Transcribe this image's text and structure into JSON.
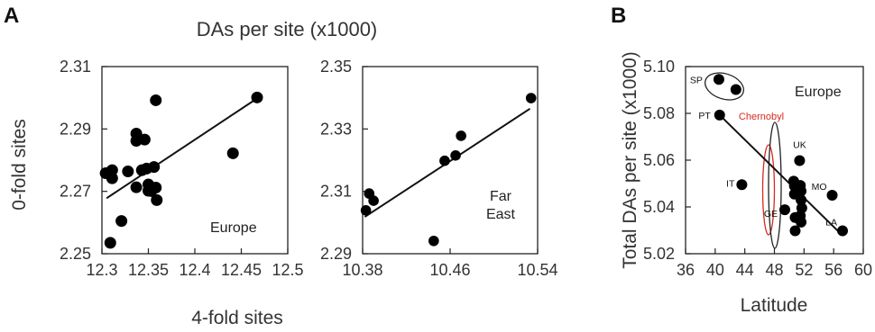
{
  "figure": {
    "title": "DAs per site (x1000)",
    "left_xlabel": "4-fold sites",
    "left_ylabel": "0-fold sites"
  },
  "chart_data": [
    {
      "type": "scatter",
      "panel_letter": "A",
      "annotation": "Europe",
      "xlim": [
        12.3,
        12.5
      ],
      "ylim": [
        2.25,
        2.31
      ],
      "xticks": [
        "12.3",
        "12.35",
        "12.4",
        "12.45",
        "12.5"
      ],
      "xtick_values": [
        12.3,
        12.35,
        12.4,
        12.45,
        12.5
      ],
      "yticks": [
        "2.25",
        "2.27",
        "2.29",
        "2.31"
      ],
      "ytick_values": [
        2.25,
        2.27,
        2.29,
        2.31
      ],
      "points": [
        {
          "x": 12.304,
          "y": 2.2758
        },
        {
          "x": 12.309,
          "y": 2.2762
        },
        {
          "x": 12.311,
          "y": 2.2768
        },
        {
          "x": 12.311,
          "y": 2.2742
        },
        {
          "x": 12.309,
          "y": 2.2535
        },
        {
          "x": 12.321,
          "y": 2.2605
        },
        {
          "x": 12.328,
          "y": 2.2764
        },
        {
          "x": 12.337,
          "y": 2.2885
        },
        {
          "x": 12.337,
          "y": 2.2862
        },
        {
          "x": 12.337,
          "y": 2.2713
        },
        {
          "x": 12.343,
          "y": 2.2768
        },
        {
          "x": 12.346,
          "y": 2.2866
        },
        {
          "x": 12.348,
          "y": 2.2773
        },
        {
          "x": 12.35,
          "y": 2.2702
        },
        {
          "x": 12.35,
          "y": 2.2722
        },
        {
          "x": 12.353,
          "y": 2.2701
        },
        {
          "x": 12.356,
          "y": 2.2778
        },
        {
          "x": 12.358,
          "y": 2.2712
        },
        {
          "x": 12.359,
          "y": 2.2672
        },
        {
          "x": 12.358,
          "y": 2.2992
        },
        {
          "x": 12.441,
          "y": 2.2822
        },
        {
          "x": 12.467,
          "y": 2.3001
        }
      ],
      "fit": {
        "x": [
          12.305,
          12.467
        ],
        "y": [
          2.2678,
          2.2998
        ]
      }
    },
    {
      "type": "scatter",
      "panel_letter": "",
      "annotation_lines": [
        "Far",
        "East"
      ],
      "xlim": [
        10.38,
        10.54
      ],
      "ylim": [
        2.29,
        2.35
      ],
      "xticks": [
        "10.38",
        "10.46",
        "10.54"
      ],
      "xtick_values": [
        10.38,
        10.46,
        10.54
      ],
      "yticks": [
        "2.29",
        "2.31",
        "2.33",
        "2.35"
      ],
      "ytick_values": [
        2.29,
        2.31,
        2.33,
        2.35
      ],
      "points": [
        {
          "x": 10.383,
          "y": 2.3039
        },
        {
          "x": 10.386,
          "y": 2.3093
        },
        {
          "x": 10.39,
          "y": 2.307
        },
        {
          "x": 10.445,
          "y": 2.2941
        },
        {
          "x": 10.455,
          "y": 2.3198
        },
        {
          "x": 10.465,
          "y": 2.3215
        },
        {
          "x": 10.47,
          "y": 2.3278
        },
        {
          "x": 10.534,
          "y": 2.3399
        }
      ],
      "fit": {
        "x": [
          10.382,
          10.533
        ],
        "y": [
          2.3018,
          2.3365
        ]
      }
    },
    {
      "type": "scatter",
      "panel_letter": "B",
      "xlabel": "Latitude",
      "ylabel": "Total DAs per site (x1000)",
      "annotation": "Europe",
      "xlim": [
        36,
        60
      ],
      "ylim": [
        5.02,
        5.1
      ],
      "xticks": [
        "36",
        "40",
        "44",
        "48",
        "52",
        "56",
        "60"
      ],
      "xtick_values": [
        36,
        40,
        44,
        48,
        52,
        56,
        60
      ],
      "yticks": [
        "5.02",
        "5.04",
        "5.06",
        "5.08",
        "5.10"
      ],
      "ytick_values": [
        5.02,
        5.04,
        5.06,
        5.08,
        5.1
      ],
      "points": [
        {
          "x": 40.5,
          "y": 5.0945,
          "label": "SP"
        },
        {
          "x": 42.8,
          "y": 5.0902
        },
        {
          "x": 40.6,
          "y": 5.0793,
          "label": "PT"
        },
        {
          "x": 43.6,
          "y": 5.0495,
          "label": "IT"
        },
        {
          "x": 49.4,
          "y": 5.0388,
          "label": "GE"
        },
        {
          "x": 50.6,
          "y": 5.051
        },
        {
          "x": 50.7,
          "y": 5.049
        },
        {
          "x": 50.7,
          "y": 5.0455
        },
        {
          "x": 50.8,
          "y": 5.0355
        },
        {
          "x": 50.8,
          "y": 5.0298
        },
        {
          "x": 51.4,
          "y": 5.0598,
          "label": "UK"
        },
        {
          "x": 51.5,
          "y": 5.0492
        },
        {
          "x": 51.6,
          "y": 5.0468
        },
        {
          "x": 51.6,
          "y": 5.043
        },
        {
          "x": 51.7,
          "y": 5.0395
        },
        {
          "x": 51.5,
          "y": 5.0362
        },
        {
          "x": 51.6,
          "y": 5.0335
        },
        {
          "x": 55.8,
          "y": 5.045,
          "label": "MO"
        },
        {
          "x": 57.2,
          "y": 5.0298,
          "label": "LA"
        }
      ],
      "fit": {
        "x": [
          40.6,
          57.2
        ],
        "y": [
          5.0793,
          5.0278
        ]
      },
      "groups": [
        {
          "label": "",
          "color": "#222222"
        },
        {
          "label": "Chernobyl",
          "color": "#d6291f"
        },
        {
          "label": "",
          "color": "#222222"
        }
      ]
    }
  ]
}
